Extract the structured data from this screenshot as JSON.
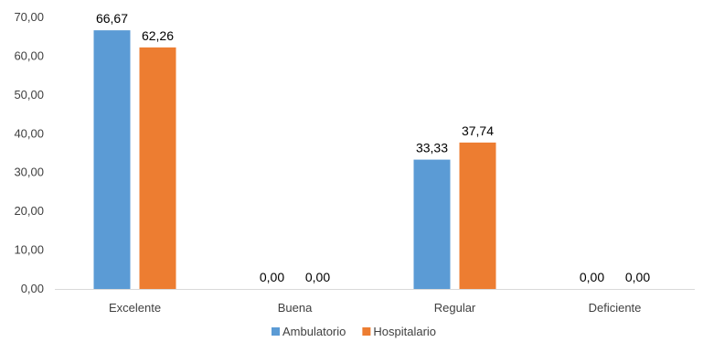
{
  "chart_data": {
    "type": "bar",
    "categories": [
      "Excelente",
      "Buena",
      "Regular",
      "Deficiente"
    ],
    "series": [
      {
        "name": "Ambulatorio",
        "values": [
          66.67,
          0.0,
          33.33,
          0.0
        ],
        "value_labels": [
          "66,67",
          "0,00",
          "33,33",
          "0,00"
        ],
        "color": "#5B9BD5"
      },
      {
        "name": "Hospitalario",
        "values": [
          62.26,
          0.0,
          37.74,
          0.0
        ],
        "value_labels": [
          "62,26",
          "0,00",
          "37,74",
          "0,00"
        ],
        "color": "#ED7D31"
      }
    ],
    "ylim": [
      0,
      70
    ],
    "yticks": [
      0,
      10,
      20,
      30,
      40,
      50,
      60,
      70
    ],
    "ytick_labels": [
      "0,00",
      "10,00",
      "20,00",
      "30,00",
      "40,00",
      "50,00",
      "60,00",
      "70,00"
    ],
    "legend_position": "bottom",
    "grid": false
  }
}
